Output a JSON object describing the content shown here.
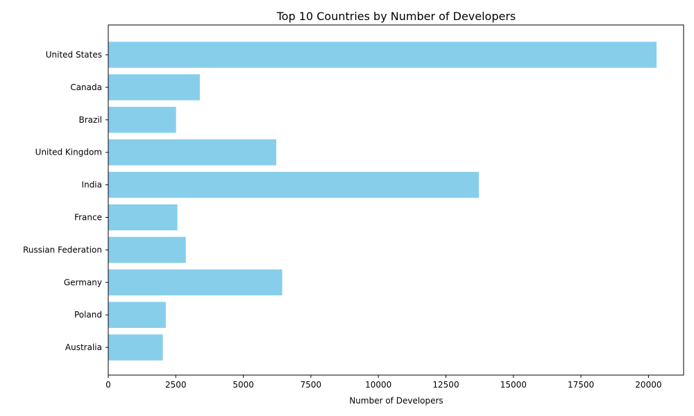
{
  "chart_data": {
    "type": "bar",
    "orientation": "horizontal",
    "title": "Top 10 Countries by Number of Developers",
    "xlabel": "Number of Developers",
    "ylabel": "",
    "categories": [
      "United States",
      "Canada",
      "Brazil",
      "United Kingdom",
      "India",
      "France",
      "Russian Federation",
      "Germany",
      "Poland",
      "Australia"
    ],
    "values": [
      20300,
      3390,
      2510,
      6220,
      13720,
      2560,
      2870,
      6440,
      2130,
      2020
    ],
    "xlim": [
      0,
      21300
    ],
    "xticks": [
      0,
      2500,
      5000,
      7500,
      10000,
      12500,
      15000,
      17500,
      20000
    ],
    "xtick_labels": [
      "0",
      "2500",
      "5000",
      "7500",
      "10000",
      "12500",
      "15000",
      "17500",
      "20000"
    ],
    "bar_color": "#87ceeb",
    "grid": false,
    "legend": "none"
  }
}
